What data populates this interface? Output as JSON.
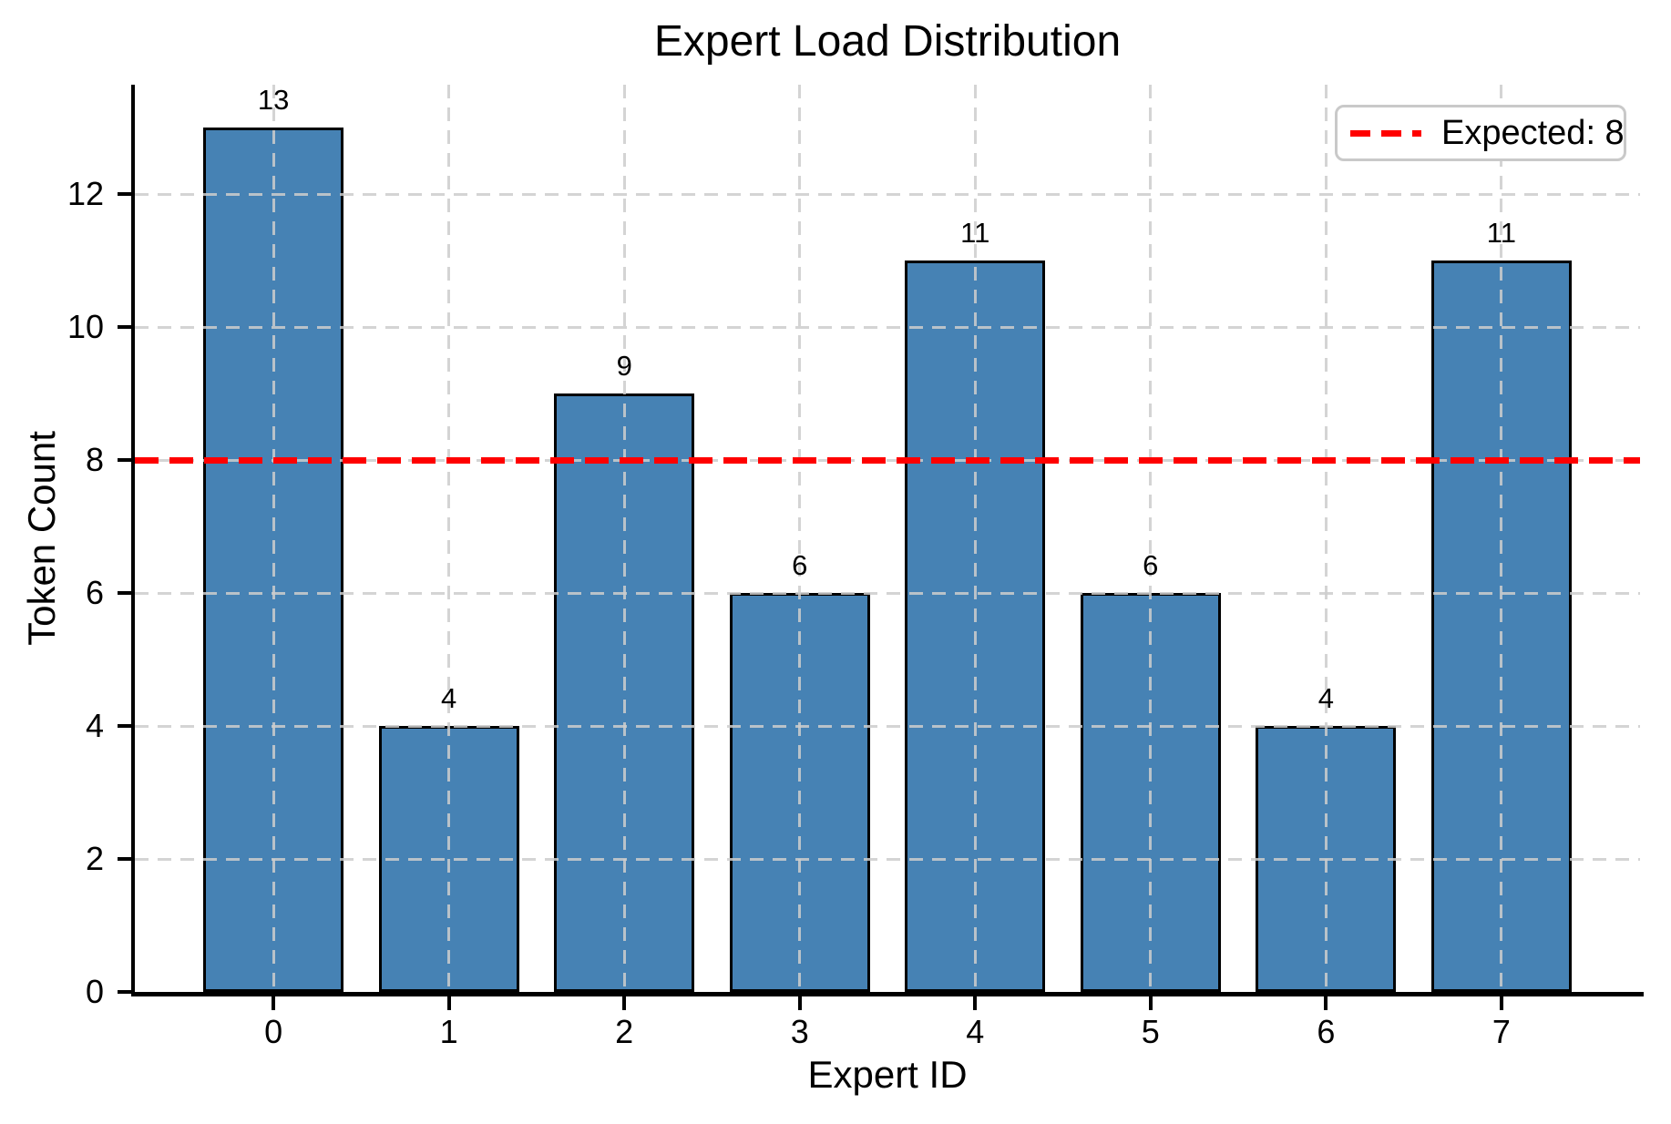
{
  "chart_data": {
    "type": "bar",
    "title": "Expert Load Distribution",
    "xlabel": "Expert ID",
    "ylabel": "Token Count",
    "categories": [
      "0",
      "1",
      "2",
      "3",
      "4",
      "5",
      "6",
      "7"
    ],
    "values": [
      13,
      4,
      9,
      6,
      11,
      6,
      4,
      11
    ],
    "value_labels": [
      "13",
      "4",
      "9",
      "6",
      "11",
      "6",
      "4",
      "11"
    ],
    "bar_color": "#4682b4",
    "bar_edge_color": "#000000",
    "bar_width": 0.8,
    "xlim": [
      -0.79,
      7.79
    ],
    "ylim": [
      0,
      13.65
    ],
    "yticks": [
      0,
      2,
      4,
      6,
      8,
      10,
      12
    ],
    "grid": true,
    "grid_style": "dashed",
    "grid_color": "#d3d3d3",
    "reference_line": {
      "value": 8,
      "color": "#ff0000",
      "style": "dashed"
    },
    "legend": {
      "position": "upper right",
      "entries": [
        {
          "label": "Expected: 8",
          "color": "#ff0000",
          "style": "dashed"
        }
      ]
    }
  }
}
